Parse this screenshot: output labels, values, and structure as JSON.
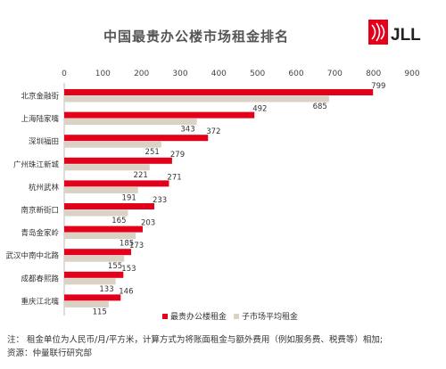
{
  "logo_text": "JLL",
  "notes": [
    "注：  租金单位为人民币/月/平方米，计算方式为将账面租金与额外费用（例如服务费、税费等）相加;",
    "资源：仲量联行研究部"
  ],
  "chart_data": {
    "type": "bar",
    "orientation": "horizontal",
    "title": "中国最贵办公楼市场租金排名",
    "categories": [
      "北京金融街",
      "上海陆家嘴",
      "深圳福田",
      "广州珠江新城",
      "杭州武林",
      "南京新街口",
      "青岛金家岭",
      "武汉中南中北路",
      "成都春熙路",
      "重庆江北嘴"
    ],
    "series": [
      {
        "name": "最贵办公楼租金",
        "color": "#e3001b",
        "values": [
          799,
          492,
          372,
          279,
          271,
          233,
          203,
          173,
          153,
          146
        ]
      },
      {
        "name": "子市场平均租金",
        "color": "#d9d2c5",
        "values": [
          685,
          343,
          251,
          221,
          191,
          165,
          185,
          155,
          133,
          115
        ]
      }
    ],
    "xlim": [
      0,
      900
    ],
    "xticks": [
      0,
      100,
      200,
      300,
      400,
      500,
      600,
      700,
      800,
      900
    ],
    "xticks_position": "top",
    "legend_position": "bottom-right",
    "grid": false
  }
}
